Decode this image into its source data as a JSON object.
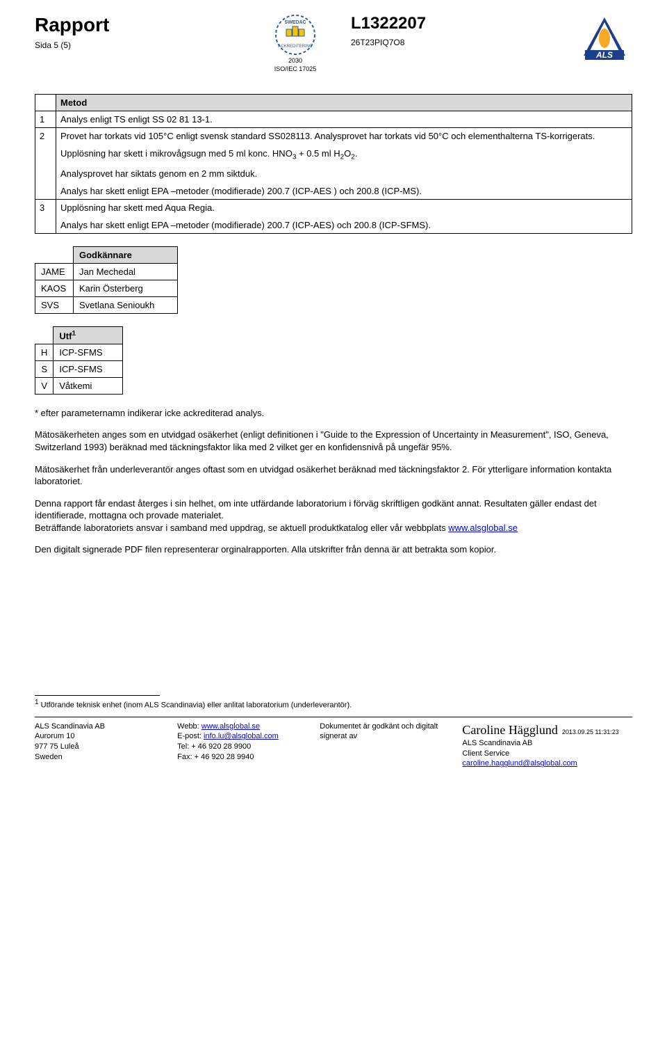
{
  "header": {
    "title": "Rapport",
    "page": "Sida 5 (5)",
    "report_no": "L1322207",
    "ref": "26T23PIQ7O8",
    "swedac_num": "2030",
    "swedac_std": "ISO/IEC 17025"
  },
  "metod": {
    "heading": "Metod",
    "rows": [
      {
        "n": "1",
        "paras": [
          "Analys enligt TS enligt SS 02 81 13-1."
        ]
      },
      {
        "n": "2",
        "paras": [
          "Provet har torkats vid 105°C enligt svensk standard SS028113. Analysprovet har torkats vid 50°C och elementhalterna TS-korrigerats.",
          "Upplösning har skett i mikrovågsugn med 5 ml konc. HNO<sub>3</sub> + 0.5 ml H<sub>2</sub>O<sub>2</sub>.",
          "Analysprovet har siktats genom en 2 mm siktduk.",
          "Analys har skett enligt EPA –metoder (modifierade) 200.7 (ICP-AES ) och 200.8 (ICP-MS)."
        ]
      },
      {
        "n": "3",
        "paras": [
          "Upplösning har skett med Aqua Regia.",
          "Analys har skett enligt EPA –metoder (modifierade) 200.7 (ICP-AES) och 200.8 (ICP-SFMS)."
        ]
      }
    ]
  },
  "godk": {
    "heading": "Godkännare",
    "rows": [
      {
        "code": "JAME",
        "name": "Jan Mechedal"
      },
      {
        "code": "KAOS",
        "name": "Karin Österberg"
      },
      {
        "code": "SVS",
        "name": "Svetlana Senioukh"
      }
    ]
  },
  "utf": {
    "heading": "Utf",
    "sup": "1",
    "rows": [
      {
        "code": "H",
        "val": "ICP-SFMS"
      },
      {
        "code": "S",
        "val": "ICP-SFMS"
      },
      {
        "code": "V",
        "val": "Våtkemi"
      }
    ]
  },
  "paras": {
    "p1": "* efter parameternamn indikerar icke ackrediterad analys.",
    "p2": "Mätosäkerheten anges som en  utvidgad osäkerhet (enligt definitionen i \"Guide to the Expression of Uncertainty in Measurement\", ISO, Geneva, Switzerland 1993) beräknad med täckningsfaktor lika med 2 vilket ger en konfidensnivå på ungefär 95%.",
    "p3": "Mätosäkerhet från underleverantör anges oftast som en utvidgad osäkerhet beräknad med täckningsfaktor 2. För ytterligare information kontakta laboratoriet.",
    "p4a": "Denna rapport får endast återges i sin helhet, om inte utfärdande laboratorium i förväg skriftligen godkänt annat. Resultaten gäller endast det identifierade, mottagna och provade materialet.",
    "p4b": "Beträffande laboratoriets ansvar i samband med uppdrag, se aktuell produktkatalog eller vår webbplats ",
    "p4link": "www.alsglobal.se",
    "p5": "Den digitalt signerade PDF filen representerar orginalrapporten. Alla utskrifter från denna är att betrakta som kopior."
  },
  "footnote": " Utförande teknisk enhet (inom ALS Scandinavia) eller anlitat laboratorium (underleverantör).",
  "footer": {
    "c1": [
      "ALS Scandinavia AB",
      "Aurorum 10",
      "977 75 Luleå",
      "Sweden"
    ],
    "c2_label_web": "Webb: ",
    "c2_web": "www.alsglobal.se",
    "c2_label_mail": "E-post: ",
    "c2_mail": "info.lu@alsglobal.com",
    "c2_tel": "Tel: + 46 920 28 9900",
    "c2_fax": "Fax: + 46 920 28 9940",
    "c3a": "Dokumentet är godkänt och digitalt",
    "c3b": "signerat av",
    "sig_name": "Caroline Hägglund",
    "sig_date": "2013.09.25 11:31:23",
    "sig_org": "ALS Scandinavia AB",
    "sig_dept": "Client Service",
    "sig_mail": "caroline.hagglund@alsglobal.com"
  },
  "colors": {
    "th_bg": "#d9d9d9",
    "link": "#0000ee"
  }
}
